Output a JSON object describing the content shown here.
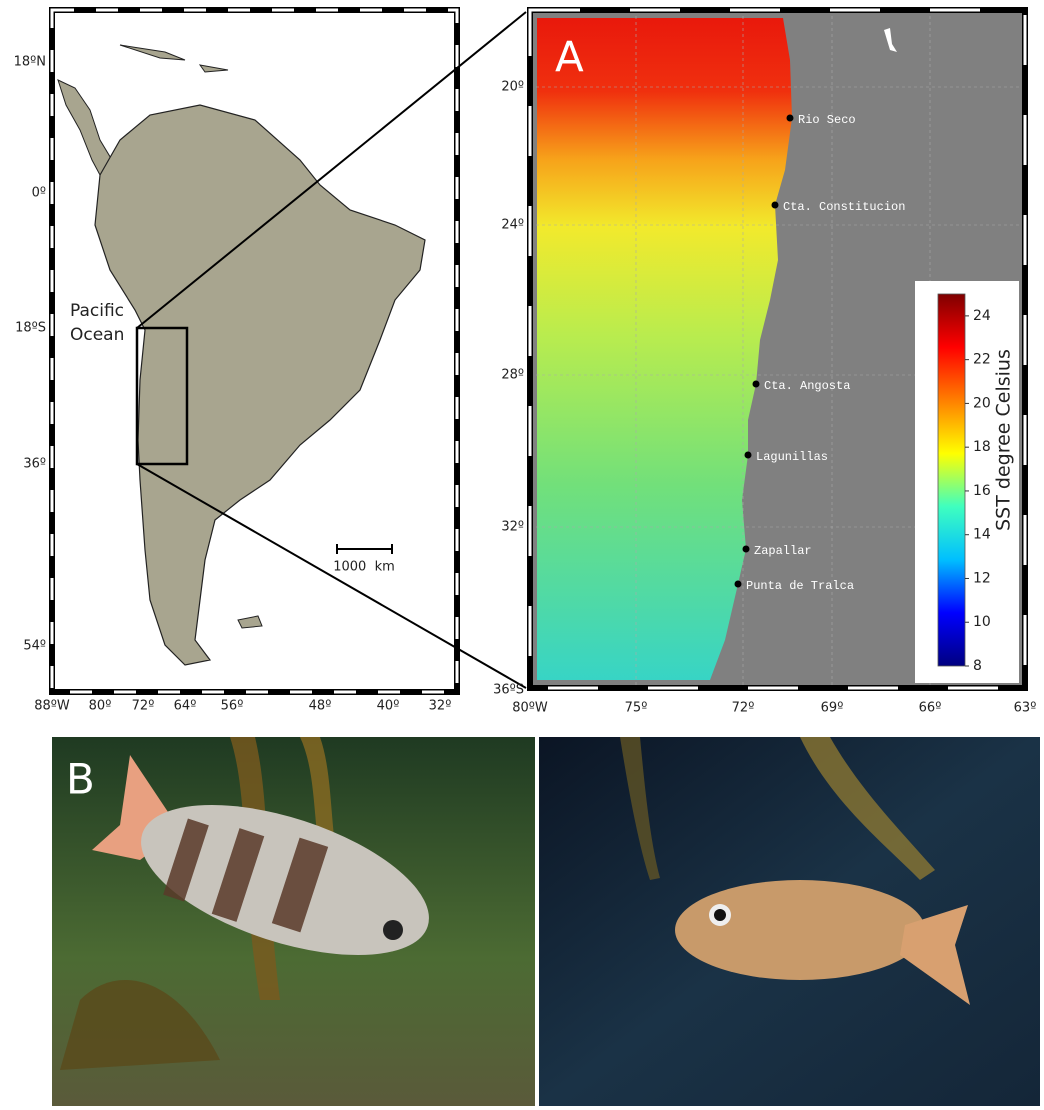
{
  "overview_map": {
    "lat_labels": [
      "18ºN",
      "0º",
      "18ºS",
      "36º",
      "54º"
    ],
    "lon_labels": [
      "88ºW",
      "80º",
      "72º",
      "64º",
      "56º",
      "48º",
      "40º",
      "32º"
    ],
    "ocean_label": [
      "Pacific",
      "Ocean"
    ],
    "scale_label": "1000  km"
  },
  "panel_a": {
    "panel_label": "A",
    "lat_labels": [
      "20º",
      "24º",
      "28º",
      "32º",
      "36ºS"
    ],
    "lon_labels": [
      "80ºW",
      "75º",
      "72º",
      "69º",
      "66º",
      "63º"
    ],
    "sites": [
      "Rio Seco",
      "Cta. Constitucion",
      "Cta. Angosta",
      "Lagunillas",
      "Zapallar",
      "Punta de Tralca"
    ],
    "colorbar": {
      "label": "SST degree Celsius",
      "lim": [
        8,
        25
      ],
      "ticks": [
        8,
        10,
        12,
        14,
        16,
        18,
        20,
        22,
        24
      ],
      "colormap": [
        "#00007f",
        "#0000ff",
        "#00bfff",
        "#3fffbf",
        "#ffff00",
        "#ff7f00",
        "#ff0000",
        "#7f0000"
      ]
    }
  },
  "panel_b": {
    "panel_label": "B"
  }
}
